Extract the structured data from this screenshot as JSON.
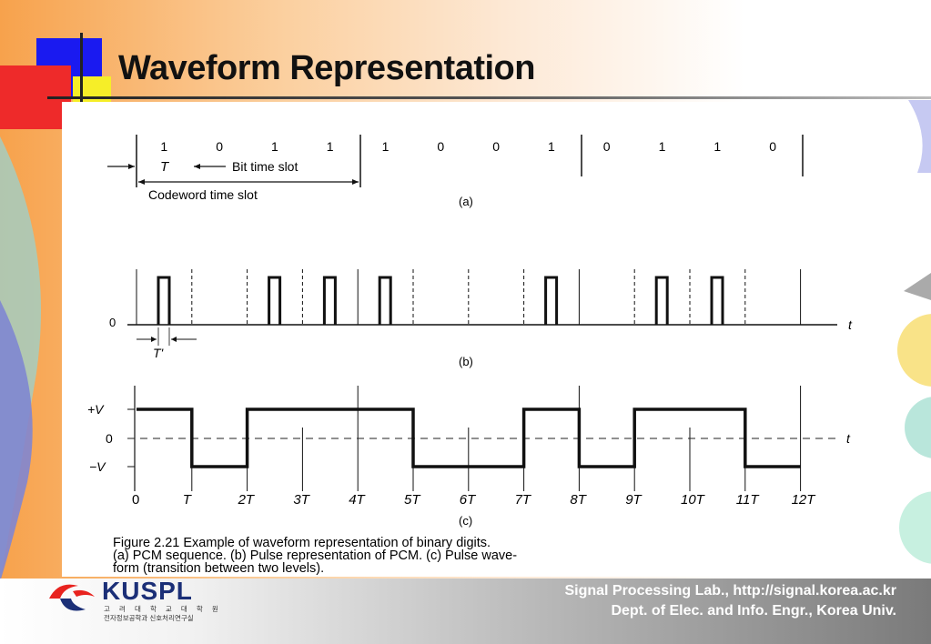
{
  "slide": {
    "title": "Waveform Representation"
  },
  "figure": {
    "a": {
      "bits": [
        "1",
        "0",
        "1",
        "1",
        "1",
        "0",
        "0",
        "1",
        "0",
        "1",
        "1",
        "0"
      ],
      "T_label": "T",
      "bit_slot_label": "Bit time slot",
      "codeword_label": "Codeword time slot",
      "caption": "(a)"
    },
    "b": {
      "zero_label": "0",
      "t_label": "t",
      "tprime_label": "T'",
      "caption": "(b)"
    },
    "c": {
      "plusv_label": "+V",
      "zero_label": "0",
      "minusv_label": "−V",
      "t_label": "t",
      "axis_ticks": [
        "0",
        "T",
        "2T",
        "3T",
        "4T",
        "5T",
        "6T",
        "7T",
        "8T",
        "9T",
        "10T",
        "11T",
        "12T"
      ],
      "caption": "(c)"
    },
    "caption_lines": [
      "Figure 2.21   Example of waveform representation of binary digits.",
      "(a) PCM sequence. (b) Pulse representation of PCM. (c) Pulse wave-",
      "form (transition between two levels)."
    ]
  },
  "footer": {
    "logo": "KUSPL",
    "logo_sub1": "고 려 대 학 교 대 학 원",
    "logo_sub2": "전자정보공학과 신호처리연구실",
    "line1": "Signal Processing Lab., http://signal.korea.ac.kr",
    "line2": "Dept. of Elec. and Info. Engr., Korea Univ."
  },
  "colors": {
    "accent_orange": "#f7a24c",
    "blue": "#1a1af0",
    "red": "#ee2a2a",
    "yellow": "#f6ee28",
    "logo_navy": "#1b2f77"
  }
}
